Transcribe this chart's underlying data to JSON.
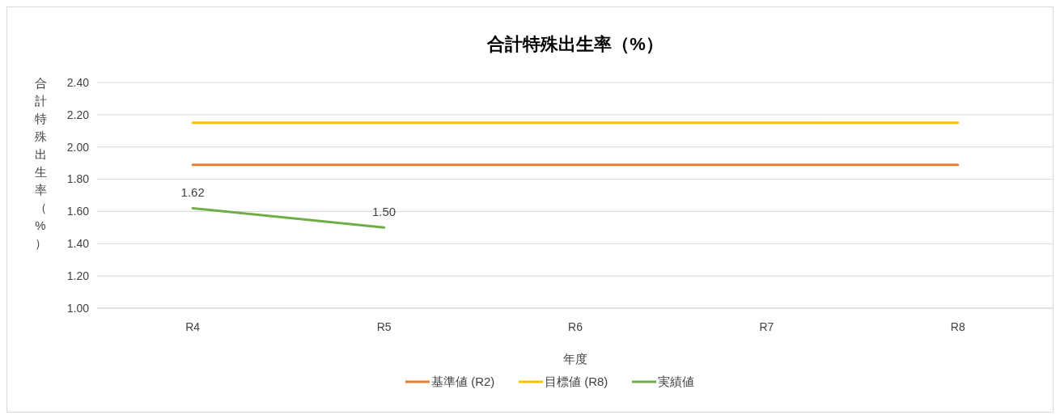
{
  "chart_data": {
    "type": "line",
    "title": "合計特殊出生率（%）",
    "xlabel": "年度",
    "ylabel": "合計特殊出生率（%）",
    "categories": [
      "R4",
      "R5",
      "R6",
      "R7",
      "R8"
    ],
    "series": [
      {
        "name": "基準値 (R2)",
        "color": "#ed7d31",
        "values": [
          1.89,
          1.89,
          1.89,
          1.89,
          1.89
        ]
      },
      {
        "name": "目標値 (R8)",
        "color": "#ffc000",
        "values": [
          2.15,
          2.15,
          2.15,
          2.15,
          2.15
        ]
      },
      {
        "name": "実績値",
        "color": "#70ad47",
        "values": [
          1.62,
          1.5,
          null,
          null,
          null
        ],
        "value_labels": [
          "1.62",
          "1.50",
          null,
          null,
          null
        ]
      }
    ],
    "ylim": [
      1.0,
      2.4
    ],
    "yticks": [
      {
        "value": 1.0,
        "label": "1.00"
      },
      {
        "value": 1.2,
        "label": "1.20"
      },
      {
        "value": 1.4,
        "label": "1.40"
      },
      {
        "value": 1.6,
        "label": "1.60"
      },
      {
        "value": 1.8,
        "label": "1.80"
      },
      {
        "value": 2.0,
        "label": "2.00"
      },
      {
        "value": 2.2,
        "label": "2.20"
      },
      {
        "value": 2.4,
        "label": "2.40"
      }
    ],
    "grid": "y",
    "legend": "bottom",
    "marker": "none",
    "line_style": "solid"
  }
}
